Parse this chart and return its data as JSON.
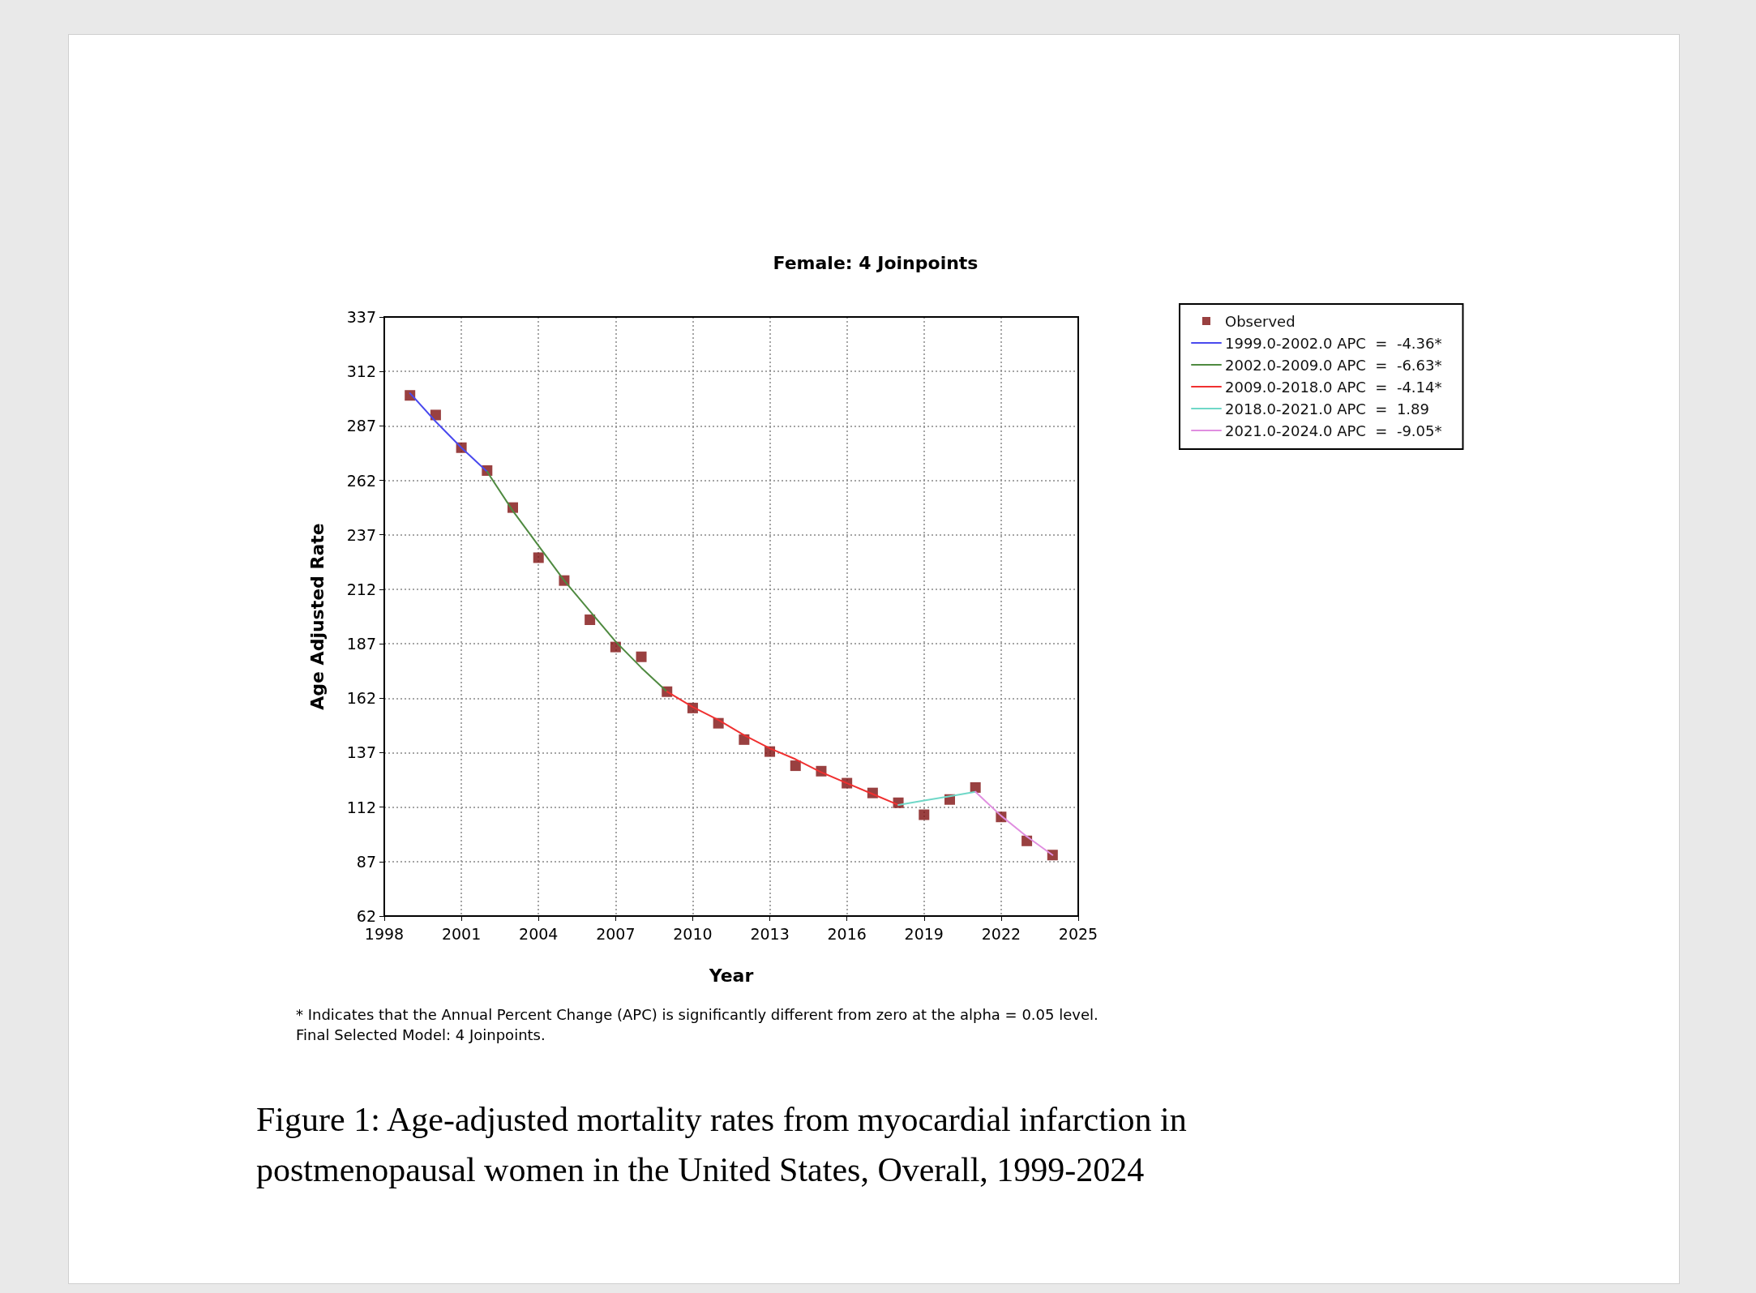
{
  "chart_data": {
    "type": "line",
    "title": "Female: 4 Joinpoints",
    "xlabel": "Year",
    "ylabel": "Age Adjusted Rate",
    "xlim": [
      1998,
      2025
    ],
    "xticks": [
      1998,
      2001,
      2004,
      2007,
      2010,
      2013,
      2016,
      2019,
      2022,
      2025
    ],
    "ylim": [
      62,
      337
    ],
    "yticks": [
      62,
      87,
      112,
      137,
      162,
      187,
      212,
      237,
      262,
      287,
      312,
      337
    ],
    "grid": true,
    "legend": "right",
    "line_style": "solid",
    "annotations": [
      "* Indicates that the Annual Percent Change (APC) is significantly different from zero at the alpha = 0.05 level.",
      "Final Selected Model: 4 Joinpoints.",
      "Figure 1: Age-adjusted mortality rates from myocardial infarction in postmenopausal women in the United States, Overall, 1999-2024"
    ],
    "series": [
      {
        "name": "Observed",
        "type": "scatter",
        "marker": "square",
        "color": "#7f1010",
        "x": [
          1999,
          2000,
          2001,
          2002,
          2003,
          2004,
          2005,
          2006,
          2007,
          2008,
          2009,
          2010,
          2011,
          2012,
          2013,
          2014,
          2015,
          2016,
          2017,
          2018,
          2019,
          2020,
          2021,
          2022,
          2023,
          2024
        ],
        "values": [
          301,
          292,
          277,
          266.5,
          249.5,
          226.5,
          216,
          198,
          185.5,
          181,
          165,
          157.5,
          150.5,
          143,
          137.5,
          131,
          128.5,
          123,
          118.5,
          114,
          108.5,
          115.5,
          121,
          107.5,
          96.5,
          90
        ]
      },
      {
        "name": "1999.0-2002.0 APC  =  -4.36*",
        "marker": "none",
        "color": "#4a4aee",
        "x": [
          1999,
          2000,
          2001,
          2002
        ],
        "values": [
          302,
          289,
          277,
          266
        ]
      },
      {
        "name": "2002.0-2009.0 APC  =  -6.63*",
        "marker": "none",
        "color": "#4f8a40",
        "x": [
          2002,
          2003,
          2004,
          2005,
          2006,
          2007,
          2008,
          2009
        ],
        "values": [
          266,
          248,
          232,
          216,
          202,
          188,
          176,
          165
        ]
      },
      {
        "name": "2009.0-2018.0 APC  =  -4.14*",
        "marker": "none",
        "color": "#f03030",
        "x": [
          2009,
          2010,
          2011,
          2012,
          2013,
          2014,
          2015,
          2016,
          2017,
          2018
        ],
        "values": [
          165,
          158,
          152,
          145,
          139,
          134,
          128,
          123,
          118,
          113
        ]
      },
      {
        "name": "2018.0-2021.0 APC  =  1.89",
        "marker": "none",
        "color": "#70d8c8",
        "x": [
          2018,
          2019,
          2020,
          2021
        ],
        "values": [
          113,
          115,
          117,
          119
        ]
      },
      {
        "name": "2021.0-2024.0 APC  =  -9.05*",
        "marker": "none",
        "color": "#e08ee0",
        "x": [
          2021,
          2022,
          2023,
          2024
        ],
        "values": [
          119,
          108,
          98.5,
          90
        ]
      }
    ]
  }
}
